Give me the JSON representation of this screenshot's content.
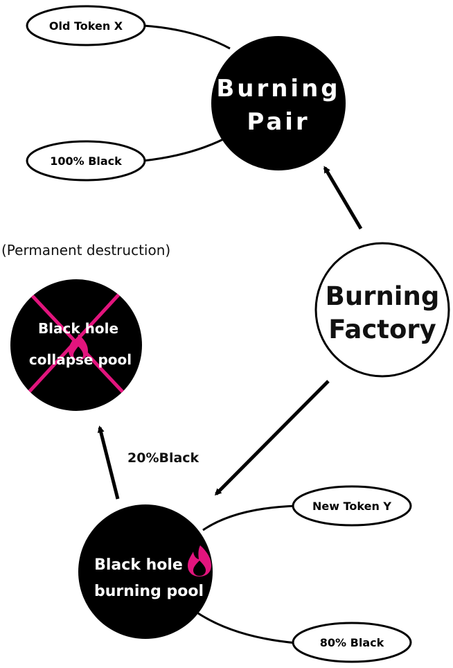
{
  "colors": {
    "node_fill": "#000000",
    "outline": "#000000",
    "background": "#ffffff",
    "text_on_dark": "#ffffff",
    "accent": "#e2147d"
  },
  "icons": {
    "flame": "flame-icon"
  },
  "nodes": {
    "old_token": {
      "label": "Old Token X"
    },
    "black_100": {
      "label": "100% Black"
    },
    "burning_pair": {
      "line1": "Burning",
      "line2": "Pair"
    },
    "burning_factory": {
      "line1": "Burning",
      "line2": "Factory"
    },
    "collapse_pool": {
      "note": "(Permanent destruction)",
      "line1": "Black hole",
      "line2": "collapse pool"
    },
    "burning_pool": {
      "line1": "Black hole",
      "line2": "burning pool"
    },
    "new_token": {
      "label": "New Token Y"
    },
    "black_80": {
      "label": "80% Black"
    }
  },
  "edges": {
    "pool_to_collapse": {
      "label": "20%Black"
    }
  }
}
